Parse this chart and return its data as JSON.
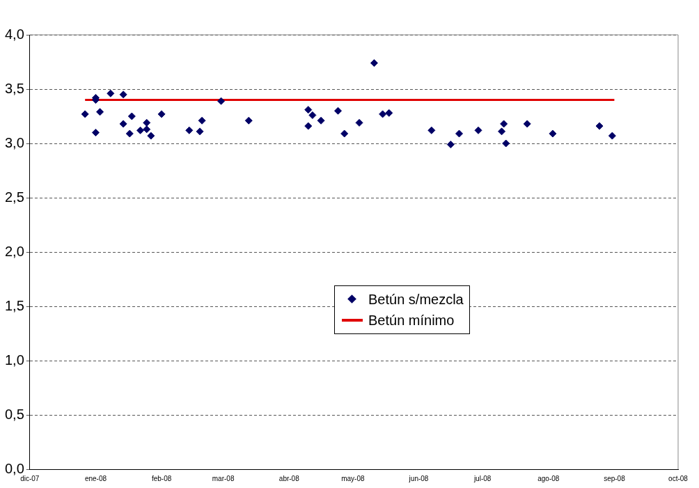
{
  "chart_data": {
    "type": "scatter",
    "xlim": [
      "2007-12-01",
      "2008-10-01"
    ],
    "xticks": [
      {
        "value": "2007-12-01",
        "label": "dic-07"
      },
      {
        "value": "2008-01-01",
        "label": "ene-08"
      },
      {
        "value": "2008-02-01",
        "label": "feb-08"
      },
      {
        "value": "2008-03-01",
        "label": "mar-08"
      },
      {
        "value": "2008-04-01",
        "label": "abr-08"
      },
      {
        "value": "2008-05-01",
        "label": "may-08"
      },
      {
        "value": "2008-06-01",
        "label": "jun-08"
      },
      {
        "value": "2008-07-01",
        "label": "jul-08"
      },
      {
        "value": "2008-08-01",
        "label": "ago-08"
      },
      {
        "value": "2008-09-01",
        "label": "sep-08"
      },
      {
        "value": "2008-10-01",
        "label": "oct-08"
      }
    ],
    "ylim": [
      0,
      4
    ],
    "yticks": [
      {
        "value": 0,
        "label": "0,0"
      },
      {
        "value": 0.5,
        "label": "0,5"
      },
      {
        "value": 1,
        "label": "1,0"
      },
      {
        "value": 1.5,
        "label": "1,5"
      },
      {
        "value": 2,
        "label": "2,0"
      },
      {
        "value": 2.5,
        "label": "2,5"
      },
      {
        "value": 3,
        "label": "3,0"
      },
      {
        "value": 3.5,
        "label": "3,5"
      },
      {
        "value": 4,
        "label": "4,0"
      }
    ],
    "grid": "y",
    "legend": "center",
    "series": [
      {
        "name": "Betún s/mezcla",
        "marker": "diamond",
        "color": "#000066",
        "x": [
          "2007-12-27",
          "2008-01-01",
          "2008-01-01",
          "2008-01-01",
          "2008-01-03",
          "2008-01-08",
          "2008-01-14",
          "2008-01-14",
          "2008-01-18",
          "2008-01-17",
          "2008-01-22",
          "2008-01-25",
          "2008-01-25",
          "2008-01-27",
          "2008-02-01",
          "2008-02-14",
          "2008-02-19",
          "2008-02-20",
          "2008-02-29",
          "2008-03-13",
          "2008-04-10",
          "2008-04-12",
          "2008-04-10",
          "2008-04-16",
          "2008-04-24",
          "2008-04-27",
          "2008-05-04",
          "2008-05-11",
          "2008-05-15",
          "2008-05-18",
          "2008-06-07",
          "2008-06-16",
          "2008-06-20",
          "2008-06-29",
          "2008-07-10",
          "2008-07-11",
          "2008-07-12",
          "2008-07-22",
          "2008-08-03",
          "2008-08-25",
          "2008-08-31"
        ],
        "values": [
          3.27,
          3.42,
          3.4,
          3.1,
          3.29,
          3.46,
          3.45,
          3.18,
          3.25,
          3.09,
          3.12,
          3.19,
          3.13,
          3.07,
          3.27,
          3.12,
          3.11,
          3.21,
          3.39,
          3.21,
          3.31,
          3.26,
          3.16,
          3.21,
          3.3,
          3.09,
          3.19,
          3.74,
          3.27,
          3.28,
          3.12,
          2.99,
          3.09,
          3.12,
          3.11,
          3.18,
          3.0,
          3.18,
          3.09,
          3.16,
          3.07
        ]
      },
      {
        "name": "Betún mínimo",
        "type": "line",
        "marker": "none",
        "line_style": "solid",
        "color": "#e00000",
        "x": [
          "2007-12-27",
          "2008-09-01"
        ],
        "values": [
          3.4,
          3.4
        ]
      }
    ]
  }
}
